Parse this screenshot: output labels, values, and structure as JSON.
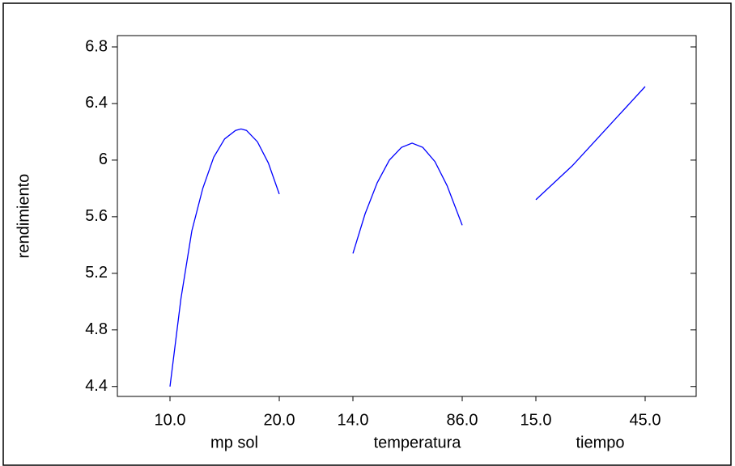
{
  "chart_data": {
    "type": "main-effects-line",
    "y_label": "rendimiento",
    "ylim": [
      4.33,
      6.88
    ],
    "yticks": [
      4.4,
      4.8,
      5.2,
      5.6,
      6,
      6.4,
      6.8
    ],
    "color": "#0000ff",
    "series": [
      {
        "name": "mp sol",
        "xticks": [
          {
            "value": 10,
            "label": "10.0"
          },
          {
            "value": 20,
            "label": "20.0"
          }
        ],
        "x": [
          10,
          11,
          12,
          13,
          14,
          15,
          16,
          16.5,
          17,
          18,
          19,
          20
        ],
        "values": [
          4.4,
          5.02,
          5.5,
          5.8,
          6.02,
          6.15,
          6.21,
          6.22,
          6.21,
          6.13,
          5.98,
          5.76
        ]
      },
      {
        "name": "temperatura",
        "xticks": [
          {
            "value": 14,
            "label": "14.0"
          },
          {
            "value": 86,
            "label": "86.0"
          }
        ],
        "x": [
          14,
          22,
          30,
          38,
          46,
          53,
          60,
          68,
          76,
          86
        ],
        "values": [
          5.34,
          5.62,
          5.84,
          6.0,
          6.09,
          6.12,
          6.09,
          5.99,
          5.82,
          5.54
        ]
      },
      {
        "name": "tiempo",
        "xticks": [
          {
            "value": 15,
            "label": "15.0"
          },
          {
            "value": 45,
            "label": "45.0"
          }
        ],
        "x": [
          15,
          20,
          25,
          30,
          35,
          40,
          45
        ],
        "values": [
          5.72,
          5.84,
          5.96,
          6.1,
          6.24,
          6.38,
          6.52
        ]
      }
    ]
  }
}
